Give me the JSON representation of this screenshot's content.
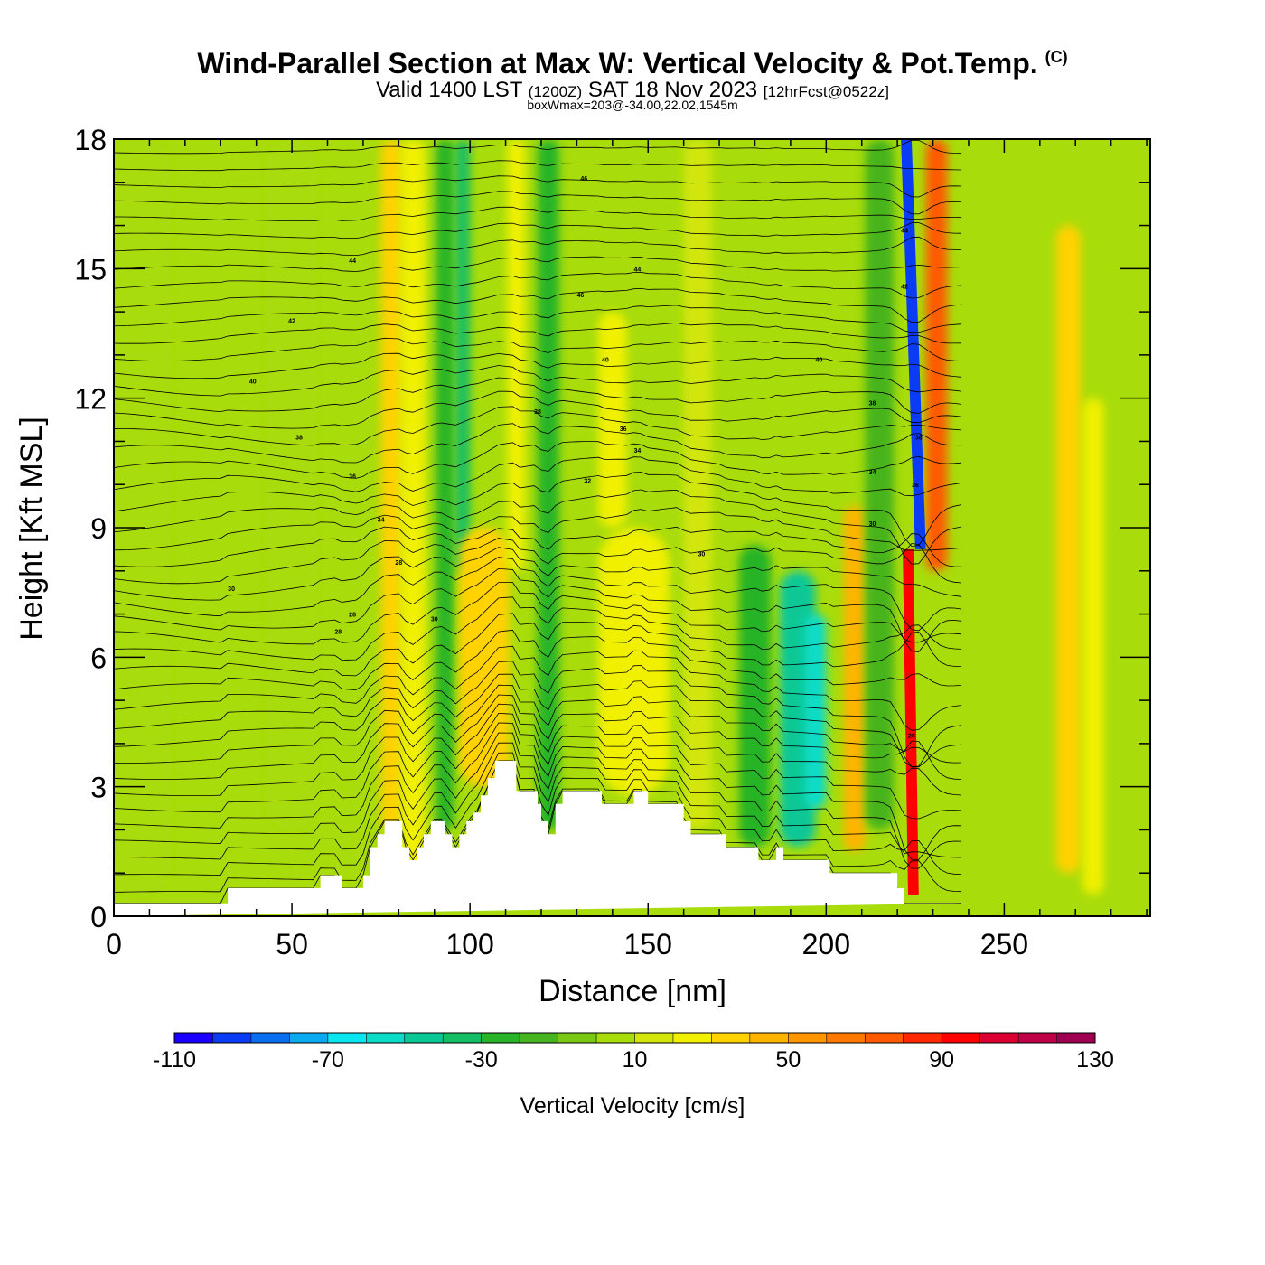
{
  "header": {
    "title": "Wind-Parallel Section at Max W: Vertical Velocity & Pot.Temp.",
    "copyright": "(C)",
    "valid_prefix": "Valid 1400 LST",
    "valid_zulu": "(1200Z)",
    "valid_date": "SAT 18 Nov 2023",
    "forecast": "[12hrFcst@0522z]",
    "box_max": "boxWmax=203@-34.00,22.02,1545m"
  },
  "chart_data": {
    "type": "heatmap",
    "xlabel": "Distance [nm]",
    "ylabel": "Height [Kft MSL]",
    "xlim": [
      0,
      291
    ],
    "ylim": [
      0,
      18
    ],
    "x_ticks": [
      0,
      50,
      100,
      150,
      200,
      250
    ],
    "y_ticks": [
      0,
      3,
      6,
      9,
      12,
      15,
      18
    ],
    "colorbar": {
      "label": "Vertical Velocity [cm/s]",
      "levels": [
        -110,
        -100,
        -90,
        -80,
        -70,
        -60,
        -50,
        -40,
        -30,
        -20,
        -10,
        0,
        10,
        20,
        30,
        40,
        50,
        60,
        70,
        80,
        90,
        100,
        110,
        120,
        130
      ],
      "tick_labels": [
        "-110",
        "-70",
        "-30",
        "10",
        "50",
        "90",
        "130"
      ],
      "colors": [
        "#1a00ff",
        "#0a3cf5",
        "#0a6ef0",
        "#0aaaf0",
        "#0ae6f0",
        "#0adcc8",
        "#0ac896",
        "#14be64",
        "#28b428",
        "#46b41e",
        "#78c814",
        "#a8dc0a",
        "#d2e60a",
        "#f0f000",
        "#ffd200",
        "#ffb400",
        "#ff9600",
        "#ff7800",
        "#ff5a00",
        "#ff2800",
        "#ff0000",
        "#dc0032",
        "#be0046",
        "#a00050"
      ]
    },
    "w_structures": [
      {
        "x": 8,
        "y0": 0.5,
        "y1": 18,
        "w": 16,
        "value": 5
      },
      {
        "x": 50,
        "y0": 2,
        "y1": 18,
        "w": 14,
        "value": 5
      },
      {
        "x": 78,
        "y0": 2,
        "y1": 18,
        "w": 6,
        "value": 35
      },
      {
        "x": 84,
        "y0": 1,
        "y1": 18,
        "w": 7,
        "value": 25
      },
      {
        "x": 93,
        "y0": 2,
        "y1": 18,
        "w": 5,
        "value": -25
      },
      {
        "x": 98,
        "y0": 8,
        "y1": 18,
        "w": 4,
        "value": -35
      },
      {
        "x": 104,
        "y0": 3.2,
        "y1": 7.5,
        "w": 9,
        "value": 45
      },
      {
        "x": 104,
        "y0": 3,
        "y1": 9,
        "w": 14,
        "value": 30
      },
      {
        "x": 113,
        "y0": 8,
        "y1": 18,
        "w": 5,
        "value": 25
      },
      {
        "x": 122,
        "y0": 2,
        "y1": 18,
        "w": 6,
        "value": -25
      },
      {
        "x": 146,
        "y0": 2.8,
        "y1": 9,
        "w": 20,
        "value": 22
      },
      {
        "x": 140,
        "y0": 9,
        "y1": 14,
        "w": 8,
        "value": 25
      },
      {
        "x": 164,
        "y0": 2,
        "y1": 18,
        "w": 8,
        "value": 12
      },
      {
        "x": 180,
        "y0": 1.6,
        "y1": 8.6,
        "w": 9,
        "value": -30
      },
      {
        "x": 192,
        "y0": 1.6,
        "y1": 8,
        "w": 10,
        "value": -45
      },
      {
        "x": 197,
        "y0": 2.5,
        "y1": 7,
        "w": 6,
        "value": -55
      },
      {
        "x": 208,
        "y0": 1.5,
        "y1": 9.5,
        "w": 6,
        "value": 45
      },
      {
        "x": 215,
        "y0": 2,
        "y1": 18,
        "w": 8,
        "value": -20
      },
      {
        "x": 231,
        "y0": 8,
        "y1": 18,
        "w": 6,
        "value": 70
      },
      {
        "x": 268,
        "y0": 1,
        "y1": 16,
        "w": 7,
        "value": 30
      },
      {
        "x": 275,
        "y0": 0.5,
        "y1": 12,
        "w": 6,
        "value": 25
      }
    ],
    "updraft_plume": {
      "x_bottom": 224.5,
      "x_top": 223,
      "y0": 0.5,
      "y1": 8.5,
      "value": 95
    },
    "downdraft_plume": {
      "x_bottom": 226.5,
      "x_top": 222.5,
      "y0": 8.5,
      "y1": 18,
      "value": -95
    },
    "terrain": {
      "x": [
        0,
        32,
        32,
        58,
        58,
        64,
        64,
        70,
        70,
        72,
        72,
        74,
        74,
        76,
        76,
        81,
        81,
        83,
        83,
        85,
        85,
        87,
        87,
        89,
        89,
        93,
        93,
        95,
        95,
        97,
        97,
        99,
        99,
        101,
        101,
        103,
        103,
        105,
        105,
        107,
        107,
        109,
        109,
        113,
        113,
        119,
        119,
        120,
        120,
        122,
        122,
        124,
        124,
        126,
        126,
        137,
        137,
        146,
        146,
        148,
        148,
        150,
        150,
        160,
        160,
        162,
        162,
        172,
        172,
        181,
        181,
        186,
        186,
        188,
        188,
        201,
        201,
        220,
        220,
        222,
        222,
        240,
        240,
        291
      ],
      "y": [
        0.3,
        0.3,
        0.65,
        0.65,
        0.95,
        0.95,
        0.65,
        0.65,
        0.95,
        0.95,
        1.6,
        1.6,
        1.9,
        1.9,
        2.2,
        2.2,
        1.6,
        1.6,
        1.3,
        1.3,
        1.6,
        1.6,
        1.9,
        1.9,
        2.2,
        2.2,
        1.9,
        1.9,
        1.6,
        1.6,
        1.9,
        1.9,
        2.2,
        2.2,
        2.4,
        2.4,
        2.8,
        2.8,
        3.2,
        3.2,
        3.6,
        3.6,
        3.6,
        3.6,
        2.9,
        2.9,
        2.6,
        2.6,
        2.2,
        2.2,
        1.9,
        1.9,
        2.6,
        2.6,
        2.9,
        2.9,
        2.6,
        2.6,
        2.9,
        2.9,
        2.9,
        2.9,
        2.6,
        2.6,
        2.2,
        2.2,
        1.9,
        1.9,
        1.6,
        1.6,
        1.3,
        1.3,
        1.6,
        1.6,
        1.3,
        1.3,
        1.0,
        1.0,
        0.65,
        0.65,
        0.3,
        0.3
      ]
    },
    "theta_contour_labels": [
      {
        "x": 33,
        "y": 7.6,
        "text": "30"
      },
      {
        "x": 63,
        "y": 6.6,
        "text": "28"
      },
      {
        "x": 67,
        "y": 7.0,
        "text": "28"
      },
      {
        "x": 75,
        "y": 9.2,
        "text": "34"
      },
      {
        "x": 80,
        "y": 8.2,
        "text": "28"
      },
      {
        "x": 90,
        "y": 6.9,
        "text": "30"
      },
      {
        "x": 52,
        "y": 11.1,
        "text": "38"
      },
      {
        "x": 67,
        "y": 10.2,
        "text": "36"
      },
      {
        "x": 39,
        "y": 12.4,
        "text": "40"
      },
      {
        "x": 50,
        "y": 13.8,
        "text": "42"
      },
      {
        "x": 67,
        "y": 15.2,
        "text": "44"
      },
      {
        "x": 132,
        "y": 17.1,
        "text": "46"
      },
      {
        "x": 131,
        "y": 14.4,
        "text": "46"
      },
      {
        "x": 147,
        "y": 15.0,
        "text": "44"
      },
      {
        "x": 138,
        "y": 12.9,
        "text": "40"
      },
      {
        "x": 119,
        "y": 11.7,
        "text": "38"
      },
      {
        "x": 143,
        "y": 11.3,
        "text": "36"
      },
      {
        "x": 147,
        "y": 10.8,
        "text": "34"
      },
      {
        "x": 133,
        "y": 10.1,
        "text": "32"
      },
      {
        "x": 165,
        "y": 8.4,
        "text": "30"
      },
      {
        "x": 198,
        "y": 12.9,
        "text": "40"
      },
      {
        "x": 213,
        "y": 11.9,
        "text": "38"
      },
      {
        "x": 213,
        "y": 10.3,
        "text": "34"
      },
      {
        "x": 213,
        "y": 9.1,
        "text": "30"
      },
      {
        "x": 222,
        "y": 15.9,
        "text": "44"
      },
      {
        "x": 222,
        "y": 14.6,
        "text": "42"
      },
      {
        "x": 226,
        "y": 11.1,
        "text": "38"
      },
      {
        "x": 225,
        "y": 10.0,
        "text": "36"
      },
      {
        "x": 224,
        "y": 4.2,
        "text": "28"
      }
    ]
  }
}
